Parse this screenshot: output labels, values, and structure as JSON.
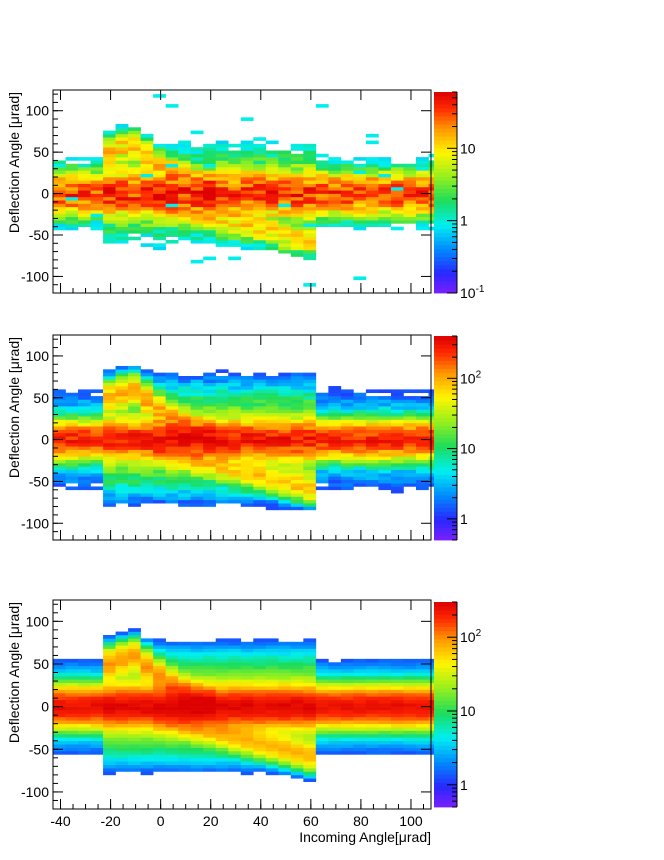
{
  "chart_data": [
    {
      "type": "heatmap",
      "ylabel": "Deflection Angle [μrad]",
      "xlabel": "",
      "xlim": [
        -43,
        108
      ],
      "ylim": [
        -120,
        125
      ],
      "y_ticks": [
        "100",
        "50",
        "0",
        "-50",
        "-100"
      ],
      "x_ticks": [],
      "colorbar": {
        "scale": "log",
        "range": [
          0.1,
          60
        ],
        "labels": [
          {
            "v": 0.1,
            "text": "10",
            "sup": "-1"
          },
          {
            "v": 1,
            "text": "1",
            "sup": ""
          },
          {
            "v": 10,
            "text": "10",
            "sup": ""
          }
        ]
      },
      "model": {
        "peak": 35,
        "low": 0.7,
        "noise": 0.55,
        "seed": 11,
        "width": 13
      }
    },
    {
      "type": "heatmap",
      "ylabel": "Deflection Angle [μrad]",
      "xlabel": "",
      "xlim": [
        -43,
        108
      ],
      "ylim": [
        -120,
        125
      ],
      "y_ticks": [
        "100",
        "50",
        "0",
        "-50",
        "-100"
      ],
      "x_ticks": [],
      "colorbar": {
        "scale": "log",
        "range": [
          0.5,
          400
        ],
        "labels": [
          {
            "v": 1,
            "text": "1",
            "sup": ""
          },
          {
            "v": 10,
            "text": "10",
            "sup": ""
          },
          {
            "v": 100,
            "text": "10",
            "sup": "2"
          }
        ]
      },
      "model": {
        "peak": 260,
        "low": 1.2,
        "noise": 0.35,
        "seed": 23,
        "width": 11
      }
    },
    {
      "type": "heatmap",
      "ylabel": "Deflection Angle [μrad]",
      "xlabel": "Incoming Angle[μrad]",
      "xlim": [
        -43,
        108
      ],
      "ylim": [
        -120,
        125
      ],
      "y_ticks": [
        "100",
        "50",
        "0",
        "-50",
        "-100"
      ],
      "x_ticks": [
        "-40",
        "-20",
        "0",
        "20",
        "40",
        "60",
        "80",
        "100"
      ],
      "colorbar": {
        "scale": "log",
        "range": [
          0.5,
          300
        ],
        "labels": [
          {
            "v": 1,
            "text": "1",
            "sup": ""
          },
          {
            "v": 10,
            "text": "10",
            "sup": ""
          },
          {
            "v": 100,
            "text": "10",
            "sup": "2"
          }
        ]
      },
      "model": {
        "peak": 240,
        "low": 1.3,
        "noise": 0.12,
        "seed": 37,
        "width": 12
      }
    }
  ]
}
